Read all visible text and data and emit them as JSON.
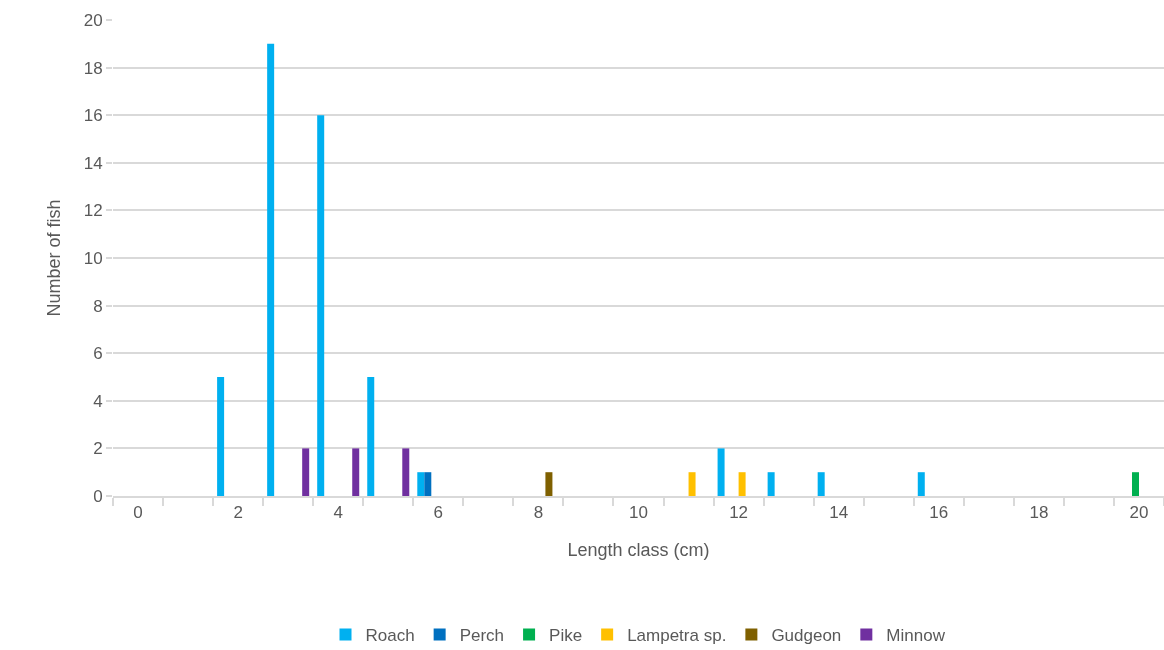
{
  "chart_data": {
    "type": "bar",
    "xlabel": "Length class (cm)",
    "ylabel": "Number of fish",
    "categories": [
      "0",
      null,
      "2",
      null,
      "4",
      null,
      "6",
      null,
      "8",
      null,
      "10",
      null,
      "12",
      null,
      "14",
      null,
      "16",
      null,
      "18",
      null,
      "20"
    ],
    "series": [
      {
        "name": "Roach",
        "color": "#00b0f0",
        "values": [
          null,
          null,
          5,
          19,
          16,
          5,
          1,
          null,
          null,
          null,
          null,
          null,
          2,
          1,
          1,
          null,
          1,
          null,
          null,
          null,
          null
        ]
      },
      {
        "name": "Perch",
        "color": "#0070c0",
        "values": [
          null,
          null,
          null,
          null,
          null,
          null,
          1,
          null,
          null,
          null,
          null,
          null,
          null,
          null,
          null,
          null,
          null,
          null,
          null,
          null,
          null
        ]
      },
      {
        "name": "Pike",
        "color": "#00b050",
        "values": [
          null,
          null,
          null,
          null,
          null,
          null,
          null,
          null,
          null,
          null,
          null,
          null,
          null,
          null,
          null,
          null,
          null,
          null,
          null,
          null,
          1
        ]
      },
      {
        "name": "Lampetra sp.",
        "color": "#ffc000",
        "values": [
          null,
          null,
          null,
          null,
          null,
          null,
          null,
          null,
          null,
          null,
          null,
          1,
          1,
          null,
          null,
          null,
          null,
          null,
          null,
          null,
          null
        ]
      },
      {
        "name": "Gudgeon",
        "color": "#7f6000",
        "values": [
          null,
          null,
          null,
          null,
          null,
          null,
          null,
          null,
          1,
          null,
          null,
          null,
          null,
          null,
          null,
          null,
          null,
          null,
          null,
          null,
          null
        ]
      },
      {
        "name": "Minnow",
        "color": "#7030a0",
        "values": [
          null,
          null,
          null,
          2,
          2,
          2,
          null,
          null,
          null,
          null,
          null,
          null,
          null,
          null,
          null,
          null,
          null,
          null,
          null,
          null,
          null
        ]
      }
    ],
    "ylim": [
      0,
      20
    ],
    "yticks": [
      0,
      2,
      4,
      6,
      8,
      10,
      12,
      14,
      16,
      18,
      20
    ],
    "grid": "y",
    "legend": "bottom"
  }
}
